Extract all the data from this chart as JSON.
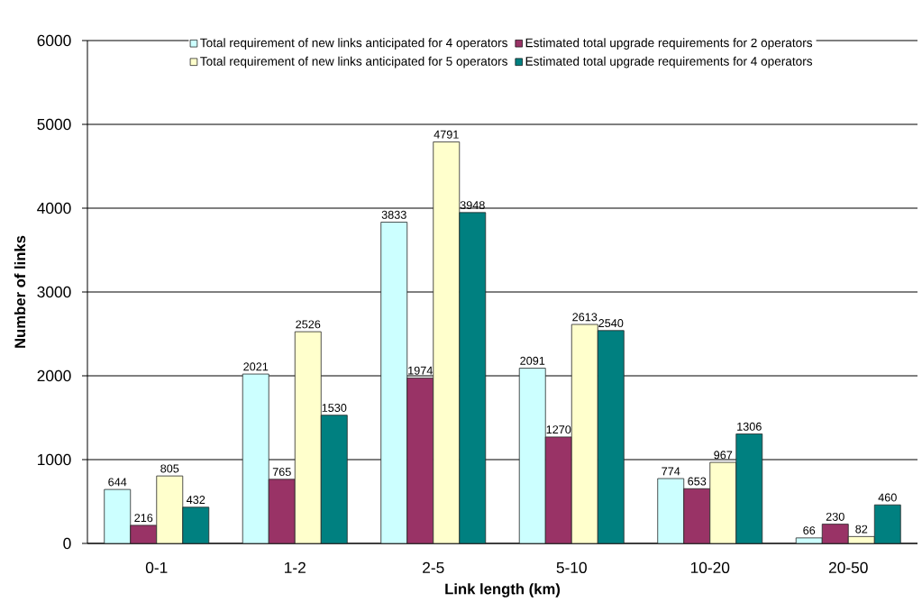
{
  "chart_data": {
    "type": "bar",
    "xlabel": "Link length (km)",
    "ylabel": "Number of links",
    "categories": [
      "0-1",
      "1-2",
      "2-5",
      "5-10",
      "10-20",
      "20-50"
    ],
    "series": [
      {
        "name": "Total requirement of new links anticipated for 4 operators",
        "color": "#ccffff",
        "values": [
          644,
          2021,
          3833,
          2091,
          774,
          66
        ]
      },
      {
        "name": "Estimated total upgrade requirements for 2 operators",
        "color": "#993366",
        "values": [
          216,
          765,
          1974,
          1270,
          653,
          230
        ]
      },
      {
        "name": "Total requirement of new links anticipated for 5 operators",
        "color": "#ffffcc",
        "values": [
          805,
          2526,
          4791,
          2613,
          967,
          82
        ]
      },
      {
        "name": "Estimated total upgrade requirements for 4 operators",
        "color": "#008080",
        "values": [
          432,
          1530,
          3948,
          2540,
          1306,
          460
        ]
      }
    ],
    "ylim": [
      0,
      6000
    ],
    "yticks": [
      0,
      1000,
      2000,
      3000,
      4000,
      5000,
      6000
    ],
    "grid": "y",
    "legend": "top",
    "data_labels": true
  }
}
